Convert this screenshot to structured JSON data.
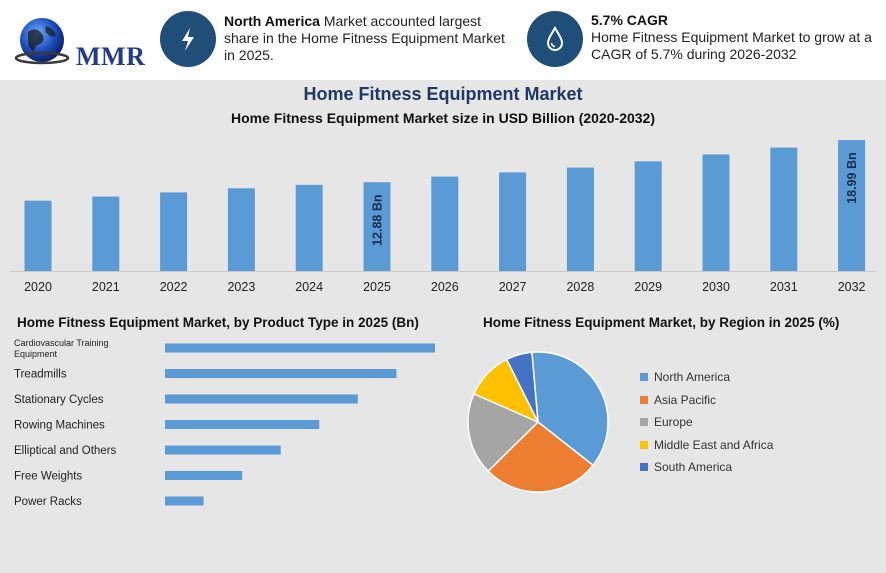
{
  "brand": {
    "logo_text": "MMR"
  },
  "callouts": [
    {
      "icon": "lightning-icon",
      "bold": "North America",
      "text": " Market accounted largest share in the Home Fitness Equipment Market in 2025."
    },
    {
      "icon": "growth-drop-icon",
      "bold": "5.7% CAGR",
      "text": "Home Fitness Equipment Market to grow at a CAGR of 5.7% during 2026-2032"
    }
  ],
  "title": "Home Fitness Equipment Market",
  "colors": {
    "bar": "#5b9bd5",
    "icon_circle": "#1f4f78",
    "title": "#1f3864"
  },
  "chart_data": [
    {
      "type": "bar",
      "title": "Home Fitness Equipment Market size in USD Billion (2020-2032)",
      "categories": [
        "2020",
        "2021",
        "2022",
        "2023",
        "2024",
        "2025",
        "2026",
        "2027",
        "2028",
        "2029",
        "2030",
        "2031",
        "2032"
      ],
      "values": [
        10.2,
        10.8,
        11.4,
        12.0,
        12.5,
        12.88,
        13.7,
        14.3,
        15.0,
        15.9,
        16.9,
        17.9,
        18.99
      ],
      "data_labels": [
        {
          "index": 5,
          "text": "12.88 Bn"
        },
        {
          "index": 12,
          "text": "18.99 Bn"
        }
      ],
      "ylim": [
        0,
        19
      ],
      "grid": false
    },
    {
      "type": "bar",
      "orientation": "horizontal",
      "title": "Home Fitness Equipment Market, by Product Type in 2025 (Bn)",
      "categories": [
        "Cardiovascular Training Equipment",
        "Treadmills",
        "Stationary Cycles",
        "Rowing Machines",
        "Elliptical and Others",
        "Free Weights",
        "Power Racks"
      ],
      "values": [
        7.0,
        6.0,
        5.0,
        4.0,
        3.0,
        2.0,
        1.0
      ],
      "xlim": [
        0,
        7
      ],
      "grid": false
    },
    {
      "type": "pie",
      "title": "Home Fitness Equipment Market, by Region in 2025 (%)",
      "legend_position": "right",
      "slices": [
        {
          "label": "North America",
          "value": 37,
          "color": "#5b9bd5"
        },
        {
          "label": "Asia Pacific",
          "value": 27,
          "color": "#ed7d31"
        },
        {
          "label": "Europe",
          "value": 19,
          "color": "#a5a5a5"
        },
        {
          "label": "Middle East and Africa",
          "value": 11,
          "color": "#ffc000"
        },
        {
          "label": "South America",
          "value": 6,
          "color": "#4472c4"
        }
      ]
    }
  ]
}
